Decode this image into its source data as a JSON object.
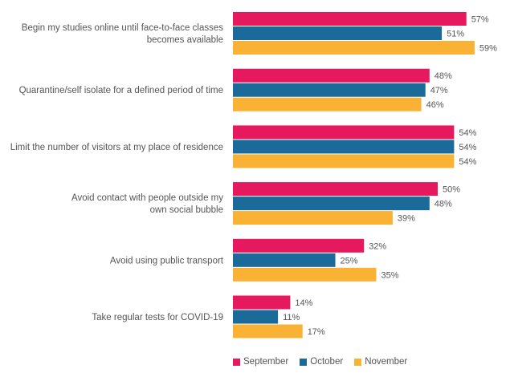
{
  "chart_data": {
    "type": "bar",
    "orientation": "horizontal",
    "categories": [
      "Begin my studies online until face-to-face classes becomes available",
      "Quarantine/self isolate for a defined period of time",
      "Limit the number of visitors at my place of residence",
      "Avoid contact with people outside my own social bubble",
      "Avoid using public transport",
      "Take regular tests for COVID-19"
    ],
    "category_lines": [
      [
        "Begin my studies online until face-to-face classes",
        "becomes available"
      ],
      [
        "Quarantine/self isolate for a defined period of time"
      ],
      [
        "Limit the number of visitors at my place of residence"
      ],
      [
        "Avoid contact with people outside my",
        "own social bubble"
      ],
      [
        "Avoid using public transport"
      ],
      [
        "Take regular tests for COVID-19"
      ]
    ],
    "series": [
      {
        "name": "September",
        "color": "#E6195E",
        "values": [
          57,
          48,
          54,
          50,
          32,
          14
        ],
        "labels": [
          "57%",
          "48%",
          "54%",
          "50%",
          "32%",
          "14%"
        ]
      },
      {
        "name": "October",
        "color": "#1A6A9A",
        "values": [
          51,
          47,
          54,
          48,
          25,
          11
        ],
        "labels": [
          "51%",
          "47%",
          "54%",
          "48%",
          "25%",
          "11%"
        ]
      },
      {
        "name": "November",
        "color": "#F9B233",
        "values": [
          59,
          46,
          54,
          39,
          35,
          17
        ],
        "labels": [
          "59%",
          "46%",
          "54%",
          "39%",
          "35%",
          "17%"
        ]
      }
    ],
    "xlim": [
      0,
      59
    ],
    "grid": false,
    "legend_position": "bottom"
  }
}
